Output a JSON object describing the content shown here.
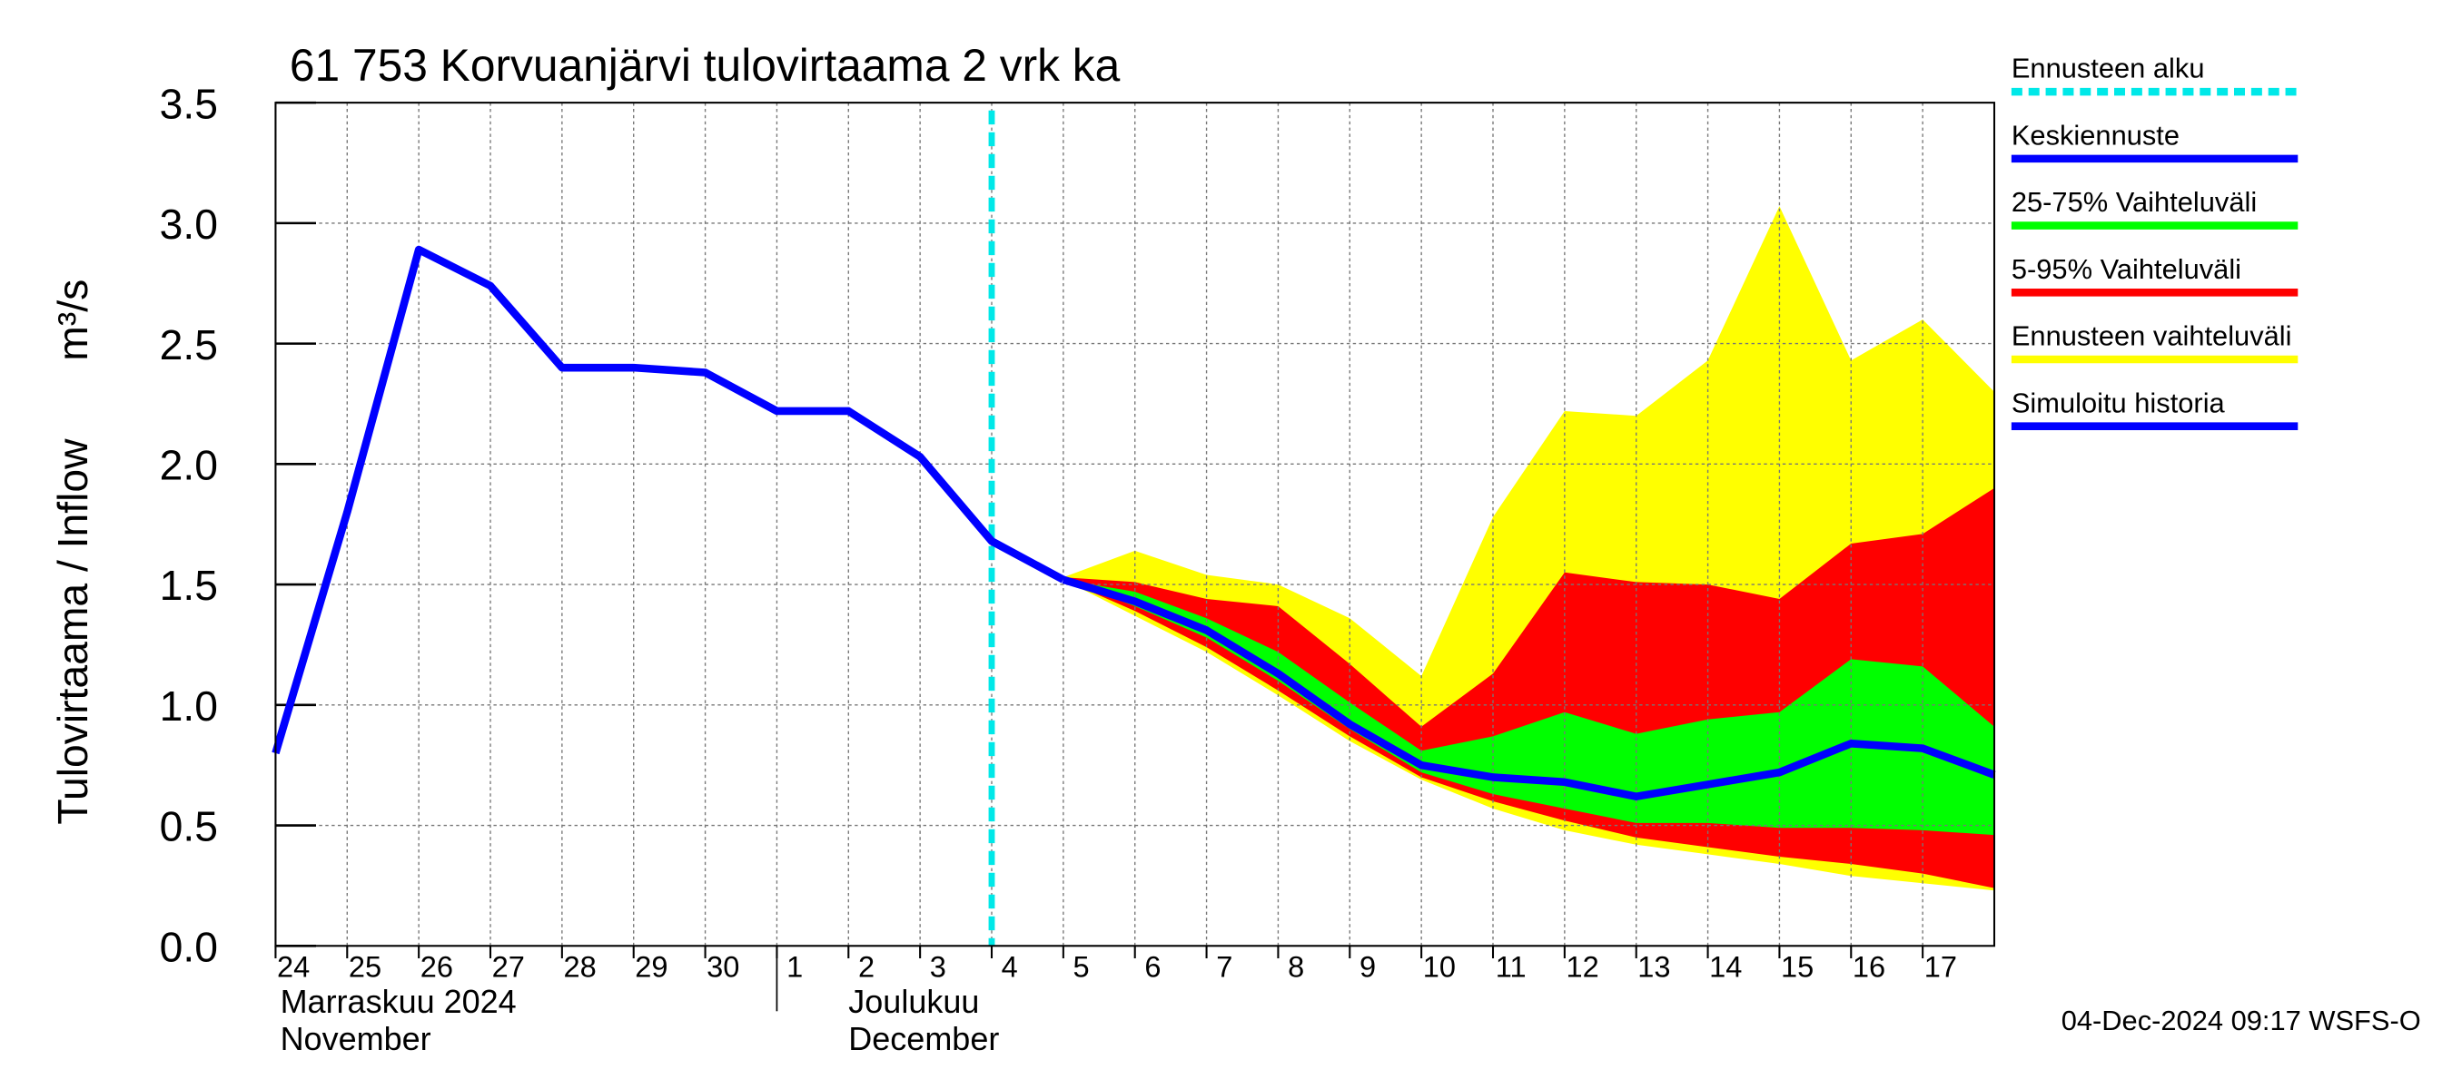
{
  "chart_data": {
    "type": "line",
    "title": "61 753 Korvuanjärvi tulovirtaama 2 vrk ka",
    "y_label": "Tulovirtaama / Inflow",
    "y_unit": "m³/s",
    "timestamp": "04-Dec-2024 09:17 WSFS-O",
    "xlim": [
      "2024-11-24",
      "2024-12-18"
    ],
    "xticks": [
      {
        "value": "2024-11-24",
        "label": "24"
      },
      {
        "value": "2024-11-25",
        "label": "25"
      },
      {
        "value": "2024-11-26",
        "label": "26"
      },
      {
        "value": "2024-11-27",
        "label": "27"
      },
      {
        "value": "2024-11-28",
        "label": "28"
      },
      {
        "value": "2024-11-29",
        "label": "29"
      },
      {
        "value": "2024-11-30",
        "label": "30"
      },
      {
        "value": "2024-12-01",
        "label": "1"
      },
      {
        "value": "2024-12-02",
        "label": "2"
      },
      {
        "value": "2024-12-03",
        "label": "3"
      },
      {
        "value": "2024-12-04",
        "label": "4"
      },
      {
        "value": "2024-12-05",
        "label": "5"
      },
      {
        "value": "2024-12-06",
        "label": "6"
      },
      {
        "value": "2024-12-07",
        "label": "7"
      },
      {
        "value": "2024-12-08",
        "label": "8"
      },
      {
        "value": "2024-12-09",
        "label": "9"
      },
      {
        "value": "2024-12-10",
        "label": "10"
      },
      {
        "value": "2024-12-11",
        "label": "11"
      },
      {
        "value": "2024-12-12",
        "label": "12"
      },
      {
        "value": "2024-12-13",
        "label": "13"
      },
      {
        "value": "2024-12-14",
        "label": "14"
      },
      {
        "value": "2024-12-15",
        "label": "15"
      },
      {
        "value": "2024-12-16",
        "label": "16"
      },
      {
        "value": "2024-12-17",
        "label": "17"
      }
    ],
    "months": [
      {
        "start": "2024-11-24",
        "label_fi": "Marraskuu 2024",
        "label_en": "November"
      },
      {
        "start": "2024-12-01",
        "label_fi": "Joulukuu",
        "label_en": "December"
      }
    ],
    "ylim": [
      0,
      3.5
    ],
    "yticks": [
      {
        "value": 0,
        "label": "0.0"
      },
      {
        "value": 0.5,
        "label": "0.5"
      },
      {
        "value": 1,
        "label": "1.0"
      },
      {
        "value": 1.5,
        "label": "1.5"
      },
      {
        "value": 2,
        "label": "2.0"
      },
      {
        "value": 2.5,
        "label": "2.5"
      },
      {
        "value": 3,
        "label": "3.0"
      },
      {
        "value": 3.5,
        "label": "3.5"
      }
    ],
    "grid": true,
    "forecast_start": {
      "name": "Ennusteen alku",
      "x": "2024-12-04",
      "color": "#00e8e8"
    },
    "bands": [
      {
        "name": "Ennusteen vaihteluväli",
        "color": "#ffff00",
        "x": [
          "2024-12-05",
          "2024-12-06",
          "2024-12-07",
          "2024-12-08",
          "2024-12-09",
          "2024-12-10",
          "2024-12-11",
          "2024-12-12",
          "2024-12-13",
          "2024-12-14",
          "2024-12-15",
          "2024-12-16",
          "2024-12-17",
          "2024-12-18"
        ],
        "upper": [
          1.53,
          1.64,
          1.54,
          1.5,
          1.36,
          1.12,
          1.78,
          2.22,
          2.2,
          2.43,
          3.07,
          2.43,
          2.6,
          2.3
        ],
        "lower": [
          1.52,
          1.37,
          1.22,
          1.04,
          0.85,
          0.69,
          0.57,
          0.48,
          0.42,
          0.38,
          0.34,
          0.29,
          0.26,
          0.23
        ]
      },
      {
        "name": "5-95% Vaihteluväli",
        "color": "#ff0000",
        "x": [
          "2024-12-05",
          "2024-12-06",
          "2024-12-07",
          "2024-12-08",
          "2024-12-09",
          "2024-12-10",
          "2024-12-11",
          "2024-12-12",
          "2024-12-13",
          "2024-12-14",
          "2024-12-15",
          "2024-12-16",
          "2024-12-17",
          "2024-12-18"
        ],
        "upper": [
          1.53,
          1.51,
          1.44,
          1.41,
          1.17,
          0.91,
          1.13,
          1.55,
          1.51,
          1.5,
          1.44,
          1.67,
          1.71,
          1.9
        ],
        "lower": [
          1.52,
          1.39,
          1.24,
          1.06,
          0.87,
          0.7,
          0.6,
          0.52,
          0.45,
          0.41,
          0.37,
          0.34,
          0.3,
          0.24
        ]
      },
      {
        "name": "25-75% Vaihteluväli",
        "color": "#00ff00",
        "x": [
          "2024-12-05",
          "2024-12-06",
          "2024-12-07",
          "2024-12-08",
          "2024-12-09",
          "2024-12-10",
          "2024-12-11",
          "2024-12-12",
          "2024-12-13",
          "2024-12-14",
          "2024-12-15",
          "2024-12-16",
          "2024-12-17",
          "2024-12-18"
        ],
        "upper": [
          1.52,
          1.47,
          1.36,
          1.22,
          1.01,
          0.81,
          0.87,
          0.97,
          0.88,
          0.94,
          0.97,
          1.19,
          1.16,
          0.91
        ],
        "lower": [
          1.52,
          1.41,
          1.28,
          1.1,
          0.9,
          0.72,
          0.63,
          0.57,
          0.51,
          0.51,
          0.49,
          0.49,
          0.48,
          0.46
        ]
      }
    ],
    "series": [
      {
        "name": "Keskiennuste",
        "color": "#0000ff",
        "x": [
          "2024-12-05",
          "2024-12-06",
          "2024-12-07",
          "2024-12-08",
          "2024-12-09",
          "2024-12-10",
          "2024-12-11",
          "2024-12-12",
          "2024-12-13",
          "2024-12-14",
          "2024-12-15",
          "2024-12-16",
          "2024-12-17",
          "2024-12-18"
        ],
        "values": [
          1.52,
          1.43,
          1.31,
          1.13,
          0.92,
          0.75,
          0.7,
          0.68,
          0.62,
          0.67,
          0.72,
          0.84,
          0.82,
          0.71
        ]
      },
      {
        "name": "Simuloitu historia",
        "color": "#0000ff",
        "x": [
          "2024-11-24",
          "2024-11-25",
          "2024-11-26",
          "2024-11-27",
          "2024-11-28",
          "2024-11-29",
          "2024-11-30",
          "2024-12-01",
          "2024-12-02",
          "2024-12-03",
          "2024-12-04",
          "2024-12-05"
        ],
        "values": [
          0.8,
          1.8,
          2.89,
          2.74,
          2.4,
          2.4,
          2.38,
          2.22,
          2.22,
          2.03,
          1.68,
          1.52
        ]
      }
    ]
  }
}
